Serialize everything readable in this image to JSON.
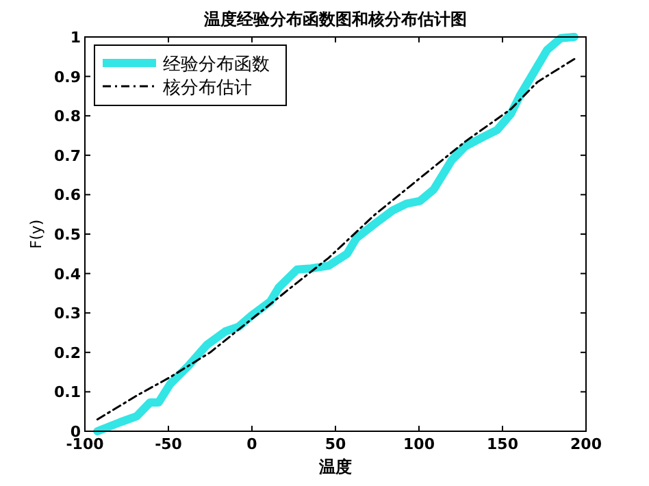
{
  "chart_data": {
    "type": "line",
    "title": "温度经验分布函数图和核分布估计图",
    "xlabel": "温度",
    "ylabel": "F(y)",
    "xlim": [
      -100,
      200
    ],
    "xticks": [
      -100,
      -50,
      0,
      50,
      100,
      150,
      200
    ],
    "ylim": [
      0,
      1
    ],
    "yticks": [
      0,
      0.1,
      0.2,
      0.3,
      0.4,
      0.5,
      0.6,
      0.7,
      0.8,
      0.9,
      1
    ],
    "legend": "top left",
    "grid": false,
    "marker": "none",
    "series": [
      {
        "name": "经验分布函数",
        "color": "#33e5e5",
        "line_style": "solid",
        "x": [
          -92.5,
          -78.8,
          -69,
          -61,
          -55.9,
          -48.9,
          -38,
          -27,
          -16,
          -8,
          0,
          11,
          16,
          27,
          35.5,
          46,
          57,
          62.6,
          73.5,
          84.3,
          92.5,
          100.6,
          108.8,
          119.7,
          127.8,
          138.7,
          146.8,
          155,
          160.4,
          168.6,
          176.7,
          184.9,
          193
        ],
        "values": [
          0,
          0.023,
          0.038,
          0.073,
          0.073,
          0.12,
          0.166,
          0.219,
          0.253,
          0.265,
          0.294,
          0.329,
          0.364,
          0.41,
          0.413,
          0.42,
          0.45,
          0.49,
          0.526,
          0.56,
          0.577,
          0.584,
          0.613,
          0.688,
          0.723,
          0.747,
          0.764,
          0.805,
          0.851,
          0.909,
          0.967,
          0.997,
          1
        ]
      },
      {
        "name": "核分布估计",
        "color": "#000000",
        "line_style": "dashdot",
        "x": [
          -92.5,
          -80,
          -67.9,
          -49,
          -25,
          0,
          25,
          46,
          73.5,
          100,
          127.8,
          155,
          171,
          193
        ],
        "values": [
          0.03,
          0.062,
          0.093,
          0.137,
          0.2,
          0.285,
          0.37,
          0.44,
          0.549,
          0.64,
          0.735,
          0.817,
          0.886,
          0.944
        ]
      }
    ]
  }
}
